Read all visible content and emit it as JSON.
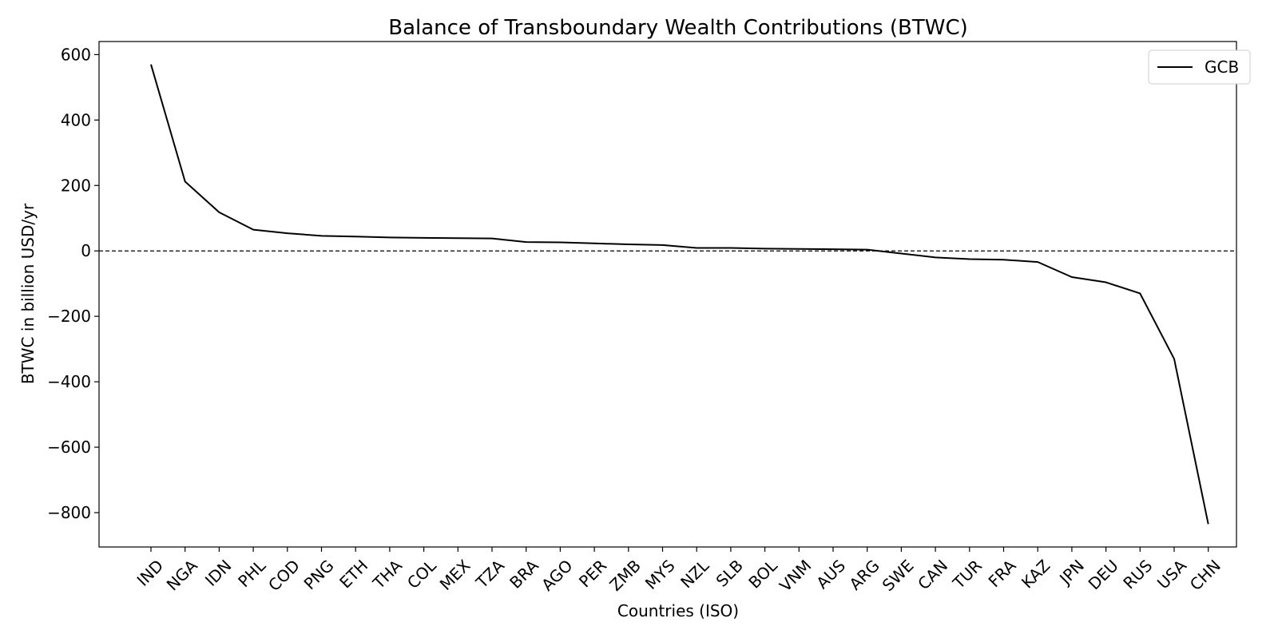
{
  "chart_data": {
    "type": "line",
    "title": "Balance of Transboundary Wealth Contributions (BTWC)",
    "xlabel": "Countries (ISO)",
    "ylabel": "BTWC in billion USD/yr",
    "categories": [
      "IND",
      "NGA",
      "IDN",
      "PHL",
      "COD",
      "PNG",
      "ETH",
      "THA",
      "COL",
      "MEX",
      "TZA",
      "BRA",
      "AGO",
      "PER",
      "ZMB",
      "MYS",
      "NZL",
      "SLB",
      "BOL",
      "VNM",
      "AUS",
      "ARG",
      "SWE",
      "CAN",
      "TUR",
      "FRA",
      "KAZ",
      "JPN",
      "DEU",
      "RUS",
      "USA",
      "CHN"
    ],
    "series": [
      {
        "name": "GCB",
        "color": "#000000",
        "values": [
          570,
          212,
          118,
          65,
          54,
          46,
          44,
          41,
          40,
          39,
          38,
          27,
          26,
          23,
          20,
          18,
          9,
          9,
          7,
          6,
          5,
          4,
          -8,
          -20,
          -25,
          -27,
          -34,
          -80,
          -96,
          -130,
          -330,
          -835
        ]
      }
    ],
    "ylim": [
      -905,
      640
    ],
    "yticks": [
      -800,
      -600,
      -400,
      -200,
      0,
      200,
      400,
      600
    ],
    "reference_line": {
      "y": 0,
      "style": "dashed",
      "color": "#000000"
    },
    "legend_position": "top-right",
    "grid": false
  }
}
